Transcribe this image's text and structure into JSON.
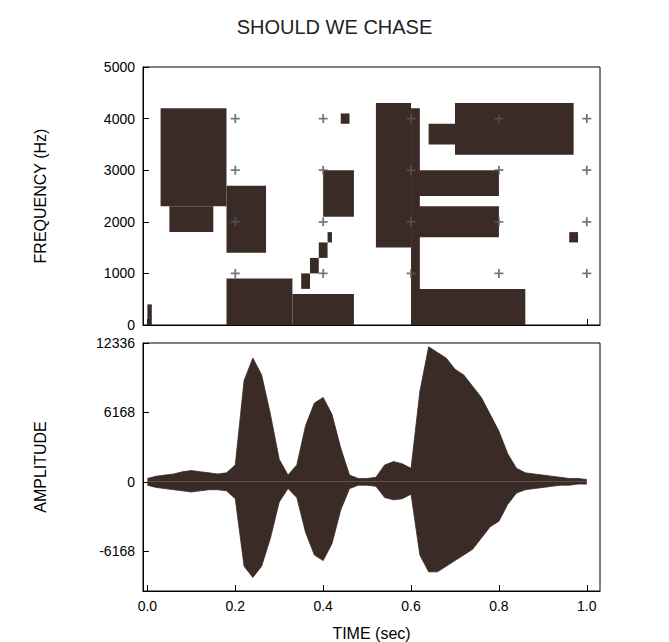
{
  "chart_data": [
    {
      "type": "spectrogram",
      "title": "SHOULD WE CHASE",
      "y_label": "FREQUENCY (Hz)",
      "color": "#3a2b27",
      "grid": true,
      "tick_labels": "y",
      "xlim": [
        -0.01,
        1.03
      ],
      "xticks": [
        0,
        0.2,
        0.4,
        0.6,
        0.8,
        1.0
      ],
      "ylim": [
        0,
        5000
      ],
      "yticks": [
        0,
        1000,
        2000,
        3000,
        4000,
        5000
      ],
      "regions": [
        [
          0.0,
          0.01,
          0,
          400
        ],
        [
          0.03,
          0.18,
          2300,
          4200
        ],
        [
          0.05,
          0.15,
          1800,
          2300
        ],
        [
          0.18,
          0.33,
          0,
          900
        ],
        [
          0.18,
          0.27,
          1400,
          2700
        ],
        [
          0.33,
          0.47,
          0,
          600
        ],
        [
          0.35,
          0.37,
          700,
          1000
        ],
        [
          0.37,
          0.39,
          1000,
          1300
        ],
        [
          0.39,
          0.41,
          1300,
          1600
        ],
        [
          0.41,
          0.42,
          1600,
          1800
        ],
        [
          0.4,
          0.47,
          2100,
          3000
        ],
        [
          0.44,
          0.46,
          3900,
          4100
        ],
        [
          0.52,
          0.6,
          1500,
          4300
        ],
        [
          0.6,
          0.62,
          0,
          4200
        ],
        [
          0.61,
          0.86,
          0,
          700
        ],
        [
          0.61,
          0.8,
          1700,
          2300
        ],
        [
          0.61,
          0.8,
          2500,
          3000
        ],
        [
          0.64,
          0.75,
          3500,
          3900
        ],
        [
          0.7,
          0.97,
          3300,
          4300
        ],
        [
          0.96,
          0.98,
          1600,
          1800
        ]
      ]
    },
    {
      "type": "waveform",
      "x_label": "TIME (sec)",
      "y_label": "AMPLITUDE",
      "color": "#3a2b27",
      "grid": false,
      "xlim": [
        -0.01,
        1.03
      ],
      "xticks": [
        {
          "value": 0,
          "label": "0.0"
        },
        0.2,
        0.4,
        0.6,
        0.8,
        {
          "value": 1,
          "label": "1.0"
        }
      ],
      "ylim": [
        -9700,
        12336
      ],
      "yticks": [
        -6168,
        0,
        6168,
        12336
      ],
      "x": [
        0,
        0.02,
        0.04,
        0.06,
        0.08,
        0.1,
        0.12,
        0.14,
        0.16,
        0.18,
        0.2,
        0.22,
        0.24,
        0.26,
        0.28,
        0.3,
        0.32,
        0.34,
        0.36,
        0.38,
        0.4,
        0.42,
        0.44,
        0.46,
        0.48,
        0.5,
        0.52,
        0.54,
        0.56,
        0.58,
        0.6,
        0.62,
        0.64,
        0.66,
        0.68,
        0.7,
        0.72,
        0.74,
        0.76,
        0.78,
        0.8,
        0.82,
        0.84,
        0.86,
        0.88,
        0.9,
        0.92,
        0.94,
        0.96,
        0.98,
        1.0
      ],
      "max": [
        300,
        500,
        600,
        700,
        900,
        1000,
        900,
        800,
        700,
        800,
        1500,
        9000,
        11000,
        9500,
        6000,
        2000,
        600,
        1500,
        5000,
        7000,
        7500,
        6000,
        3000,
        600,
        300,
        300,
        400,
        1500,
        1800,
        1600,
        1200,
        8000,
        12000,
        11500,
        11000,
        10000,
        9500,
        8500,
        7500,
        6000,
        4500,
        2500,
        1200,
        800,
        700,
        600,
        500,
        400,
        300,
        300,
        200
      ],
      "min": [
        -300,
        -500,
        -600,
        -700,
        -800,
        -900,
        -800,
        -700,
        -700,
        -800,
        -1500,
        -7500,
        -8500,
        -7500,
        -5000,
        -1800,
        -600,
        -1400,
        -4500,
        -6500,
        -7000,
        -5500,
        -2500,
        -600,
        -300,
        -300,
        -400,
        -1400,
        -1600,
        -1500,
        -1100,
        -6500,
        -8000,
        -8000,
        -7500,
        -7000,
        -6500,
        -6000,
        -5000,
        -4000,
        -3500,
        -2000,
        -1000,
        -700,
        -600,
        -500,
        -400,
        -300,
        -300,
        -200,
        -200
      ]
    }
  ]
}
